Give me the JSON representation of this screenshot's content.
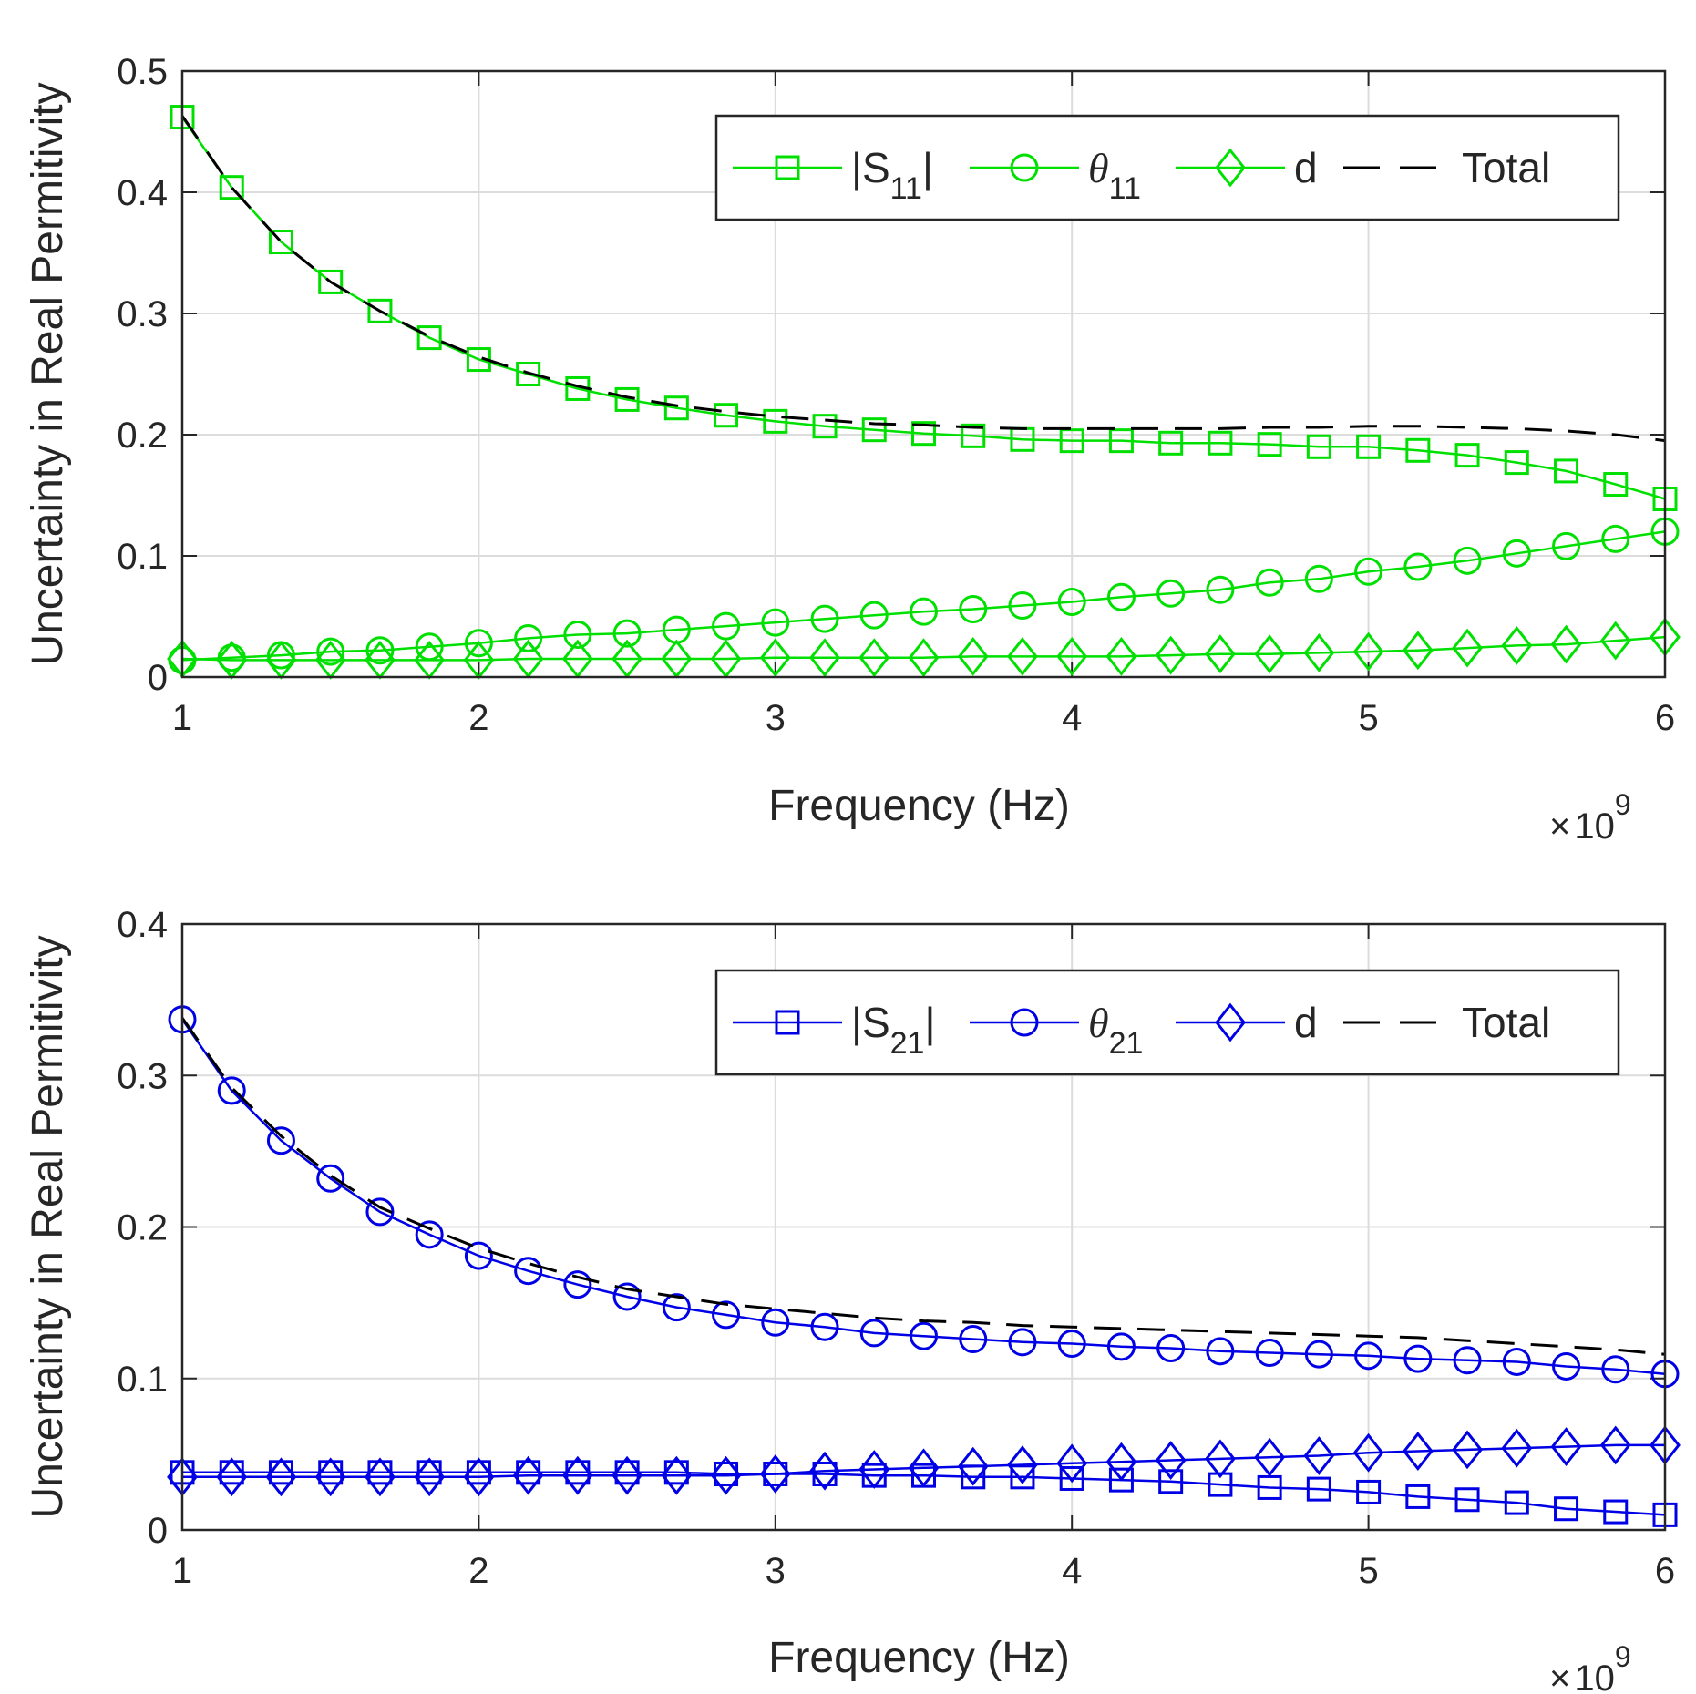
{
  "chart_data": [
    {
      "type": "line",
      "title": "",
      "xlabel": "Frequency (Hz)",
      "ylabel": "Uncertainty in Real Permitivity",
      "x_multiplier": "10",
      "x_multiplier_exp": "9",
      "x_multiplier_sign": "×",
      "xlim": [
        1,
        6
      ],
      "ylim": [
        0,
        0.5
      ],
      "xticks": [
        1,
        2,
        3,
        4,
        5,
        6
      ],
      "xtick_labels": [
        "1",
        "2",
        "3",
        "4",
        "5",
        "6"
      ],
      "yticks": [
        0,
        0.1,
        0.2,
        0.3,
        0.4,
        0.5
      ],
      "ytick_labels": [
        "0",
        "0.1",
        "0.2",
        "0.3",
        "0.4",
        "0.5"
      ],
      "grid": true,
      "legend_position": "top-right",
      "color": "#00e000",
      "x": [
        1.0,
        1.1667,
        1.3333,
        1.5,
        1.6667,
        1.8333,
        2.0,
        2.1667,
        2.3333,
        2.5,
        2.6667,
        2.8333,
        3.0,
        3.1667,
        3.3333,
        3.5,
        3.6667,
        3.8333,
        4.0,
        4.1667,
        4.3333,
        4.5,
        4.6667,
        4.8333,
        5.0,
        5.1667,
        5.3333,
        5.5,
        5.6667,
        5.8333,
        6.0
      ],
      "series": [
        {
          "name": "|S",
          "sub": "11",
          "suffix": "|",
          "marker": "square",
          "style": "solid",
          "values": [
            0.462,
            0.404,
            0.359,
            0.326,
            0.302,
            0.28,
            0.262,
            0.25,
            0.238,
            0.229,
            0.222,
            0.216,
            0.211,
            0.207,
            0.204,
            0.201,
            0.199,
            0.196,
            0.195,
            0.195,
            0.193,
            0.193,
            0.192,
            0.19,
            0.19,
            0.187,
            0.183,
            0.177,
            0.17,
            0.159,
            0.147
          ]
        },
        {
          "name": "θ",
          "sub": "11",
          "suffix": "",
          "marker": "circle",
          "style": "solid",
          "values": [
            0.014,
            0.016,
            0.018,
            0.021,
            0.022,
            0.025,
            0.028,
            0.032,
            0.035,
            0.036,
            0.039,
            0.042,
            0.045,
            0.048,
            0.051,
            0.054,
            0.056,
            0.059,
            0.062,
            0.066,
            0.069,
            0.072,
            0.078,
            0.081,
            0.087,
            0.091,
            0.096,
            0.102,
            0.108,
            0.114,
            0.12
          ]
        },
        {
          "name": "d",
          "sub": "",
          "suffix": "",
          "marker": "diamond",
          "style": "solid",
          "values": [
            0.015,
            0.014,
            0.014,
            0.014,
            0.014,
            0.014,
            0.014,
            0.015,
            0.015,
            0.015,
            0.015,
            0.015,
            0.016,
            0.016,
            0.016,
            0.016,
            0.017,
            0.017,
            0.017,
            0.017,
            0.018,
            0.019,
            0.019,
            0.02,
            0.021,
            0.022,
            0.024,
            0.026,
            0.027,
            0.03,
            0.033
          ]
        },
        {
          "name": "Total",
          "sub": "",
          "suffix": "",
          "marker": "none",
          "style": "dashed",
          "values": [
            0.463,
            0.404,
            0.359,
            0.326,
            0.302,
            0.281,
            0.264,
            0.251,
            0.24,
            0.231,
            0.224,
            0.219,
            0.215,
            0.212,
            0.209,
            0.208,
            0.206,
            0.205,
            0.205,
            0.205,
            0.205,
            0.205,
            0.206,
            0.206,
            0.207,
            0.207,
            0.206,
            0.205,
            0.203,
            0.2,
            0.195
          ]
        }
      ]
    },
    {
      "type": "line",
      "title": "",
      "xlabel": "Frequency (Hz)",
      "ylabel": "Uncertainty in Real Permitivity",
      "x_multiplier": "10",
      "x_multiplier_exp": "9",
      "x_multiplier_sign": "×",
      "xlim": [
        1,
        6
      ],
      "ylim": [
        0,
        0.4
      ],
      "xticks": [
        1,
        2,
        3,
        4,
        5,
        6
      ],
      "xtick_labels": [
        "1",
        "2",
        "3",
        "4",
        "5",
        "6"
      ],
      "yticks": [
        0,
        0.1,
        0.2,
        0.3,
        0.4
      ],
      "ytick_labels": [
        "0",
        "0.1",
        "0.2",
        "0.3",
        "0.4"
      ],
      "grid": true,
      "legend_position": "top-right",
      "color": "#0000e6",
      "x": [
        1.0,
        1.1667,
        1.3333,
        1.5,
        1.6667,
        1.8333,
        2.0,
        2.1667,
        2.3333,
        2.5,
        2.6667,
        2.8333,
        3.0,
        3.1667,
        3.3333,
        3.5,
        3.6667,
        3.8333,
        4.0,
        4.1667,
        4.3333,
        4.5,
        4.6667,
        4.8333,
        5.0,
        5.1667,
        5.3333,
        5.5,
        5.6667,
        5.8333,
        6.0
      ],
      "series": [
        {
          "name": "|S",
          "sub": "21",
          "suffix": "|",
          "marker": "square",
          "style": "solid",
          "values": [
            0.038,
            0.038,
            0.038,
            0.038,
            0.038,
            0.038,
            0.038,
            0.038,
            0.038,
            0.038,
            0.038,
            0.037,
            0.037,
            0.037,
            0.036,
            0.036,
            0.035,
            0.035,
            0.034,
            0.033,
            0.032,
            0.03,
            0.028,
            0.027,
            0.025,
            0.022,
            0.02,
            0.018,
            0.014,
            0.012,
            0.01
          ]
        },
        {
          "name": "θ",
          "sub": "21",
          "suffix": "",
          "marker": "circle",
          "style": "solid",
          "values": [
            0.337,
            0.29,
            0.257,
            0.232,
            0.21,
            0.195,
            0.181,
            0.171,
            0.162,
            0.154,
            0.147,
            0.142,
            0.137,
            0.134,
            0.13,
            0.128,
            0.126,
            0.124,
            0.123,
            0.121,
            0.12,
            0.118,
            0.117,
            0.116,
            0.115,
            0.113,
            0.112,
            0.111,
            0.108,
            0.106,
            0.103
          ]
        },
        {
          "name": "d",
          "sub": "",
          "suffix": "",
          "marker": "diamond",
          "style": "solid",
          "values": [
            0.035,
            0.035,
            0.035,
            0.035,
            0.035,
            0.035,
            0.035,
            0.036,
            0.036,
            0.036,
            0.036,
            0.036,
            0.037,
            0.039,
            0.04,
            0.041,
            0.042,
            0.043,
            0.044,
            0.045,
            0.046,
            0.047,
            0.048,
            0.049,
            0.051,
            0.052,
            0.053,
            0.054,
            0.055,
            0.056,
            0.056
          ]
        },
        {
          "name": "Total",
          "sub": "",
          "suffix": "",
          "marker": "none",
          "style": "dashed",
          "values": [
            0.338,
            0.292,
            0.26,
            0.234,
            0.213,
            0.199,
            0.186,
            0.176,
            0.167,
            0.159,
            0.154,
            0.149,
            0.146,
            0.143,
            0.14,
            0.138,
            0.137,
            0.135,
            0.134,
            0.133,
            0.132,
            0.131,
            0.13,
            0.129,
            0.128,
            0.127,
            0.125,
            0.123,
            0.121,
            0.119,
            0.116
          ]
        }
      ]
    }
  ]
}
